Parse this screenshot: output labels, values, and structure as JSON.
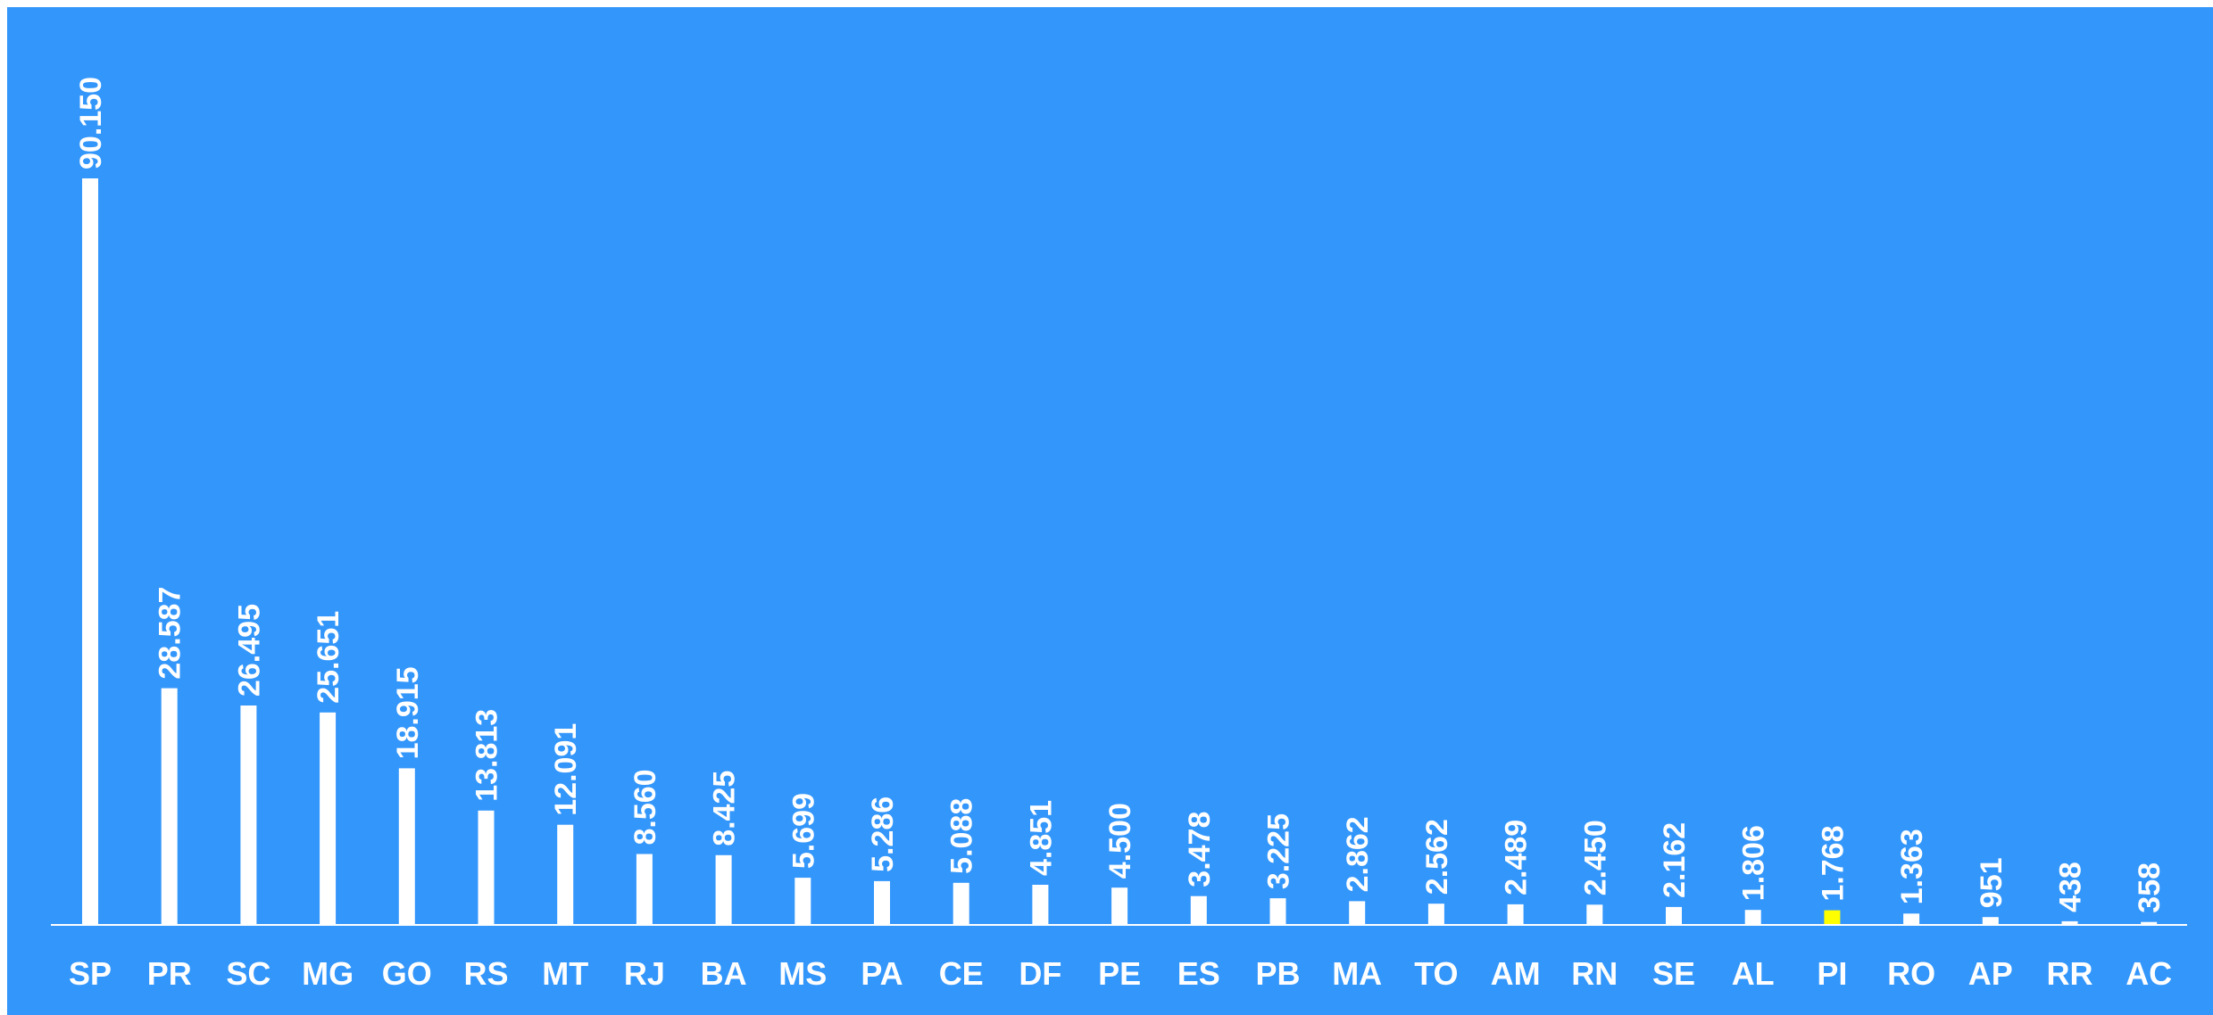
{
  "chart_data": {
    "type": "bar",
    "title": "",
    "xlabel": "",
    "ylabel": "",
    "grid": false,
    "legend": "none",
    "ylim": [
      0,
      100000
    ],
    "categories": [
      "SP",
      "PR",
      "SC",
      "MG",
      "GO",
      "RS",
      "MT",
      "RJ",
      "BA",
      "MS",
      "PA",
      "CE",
      "DF",
      "PE",
      "ES",
      "PB",
      "MA",
      "TO",
      "AM",
      "RN",
      "SE",
      "AL",
      "PI",
      "RO",
      "AP",
      "RR",
      "AC"
    ],
    "values": [
      90150,
      28587,
      26495,
      25651,
      18915,
      13813,
      12091,
      8560,
      8425,
      5699,
      5286,
      5088,
      4851,
      4500,
      3478,
      3225,
      2862,
      2562,
      2489,
      2450,
      2162,
      1806,
      1768,
      1363,
      951,
      438,
      358
    ],
    "value_labels": [
      "90.150",
      "28.587",
      "26.495",
      "25.651",
      "18.915",
      "13.813",
      "12.091",
      "8.560",
      "8.425",
      "5.699",
      "5.286",
      "5.088",
      "4.851",
      "4.500",
      "3.478",
      "3.225",
      "2.862",
      "2.562",
      "2.489",
      "2.450",
      "2.162",
      "1.806",
      "1.768",
      "1.363",
      "951",
      "438",
      "358"
    ],
    "highlight_category": "PI",
    "colors": {
      "background": "#3396fb",
      "bar": "#ffffff",
      "highlight_bar": "#ffff00",
      "axis": "#ffffff",
      "text": "#ffffff"
    }
  }
}
